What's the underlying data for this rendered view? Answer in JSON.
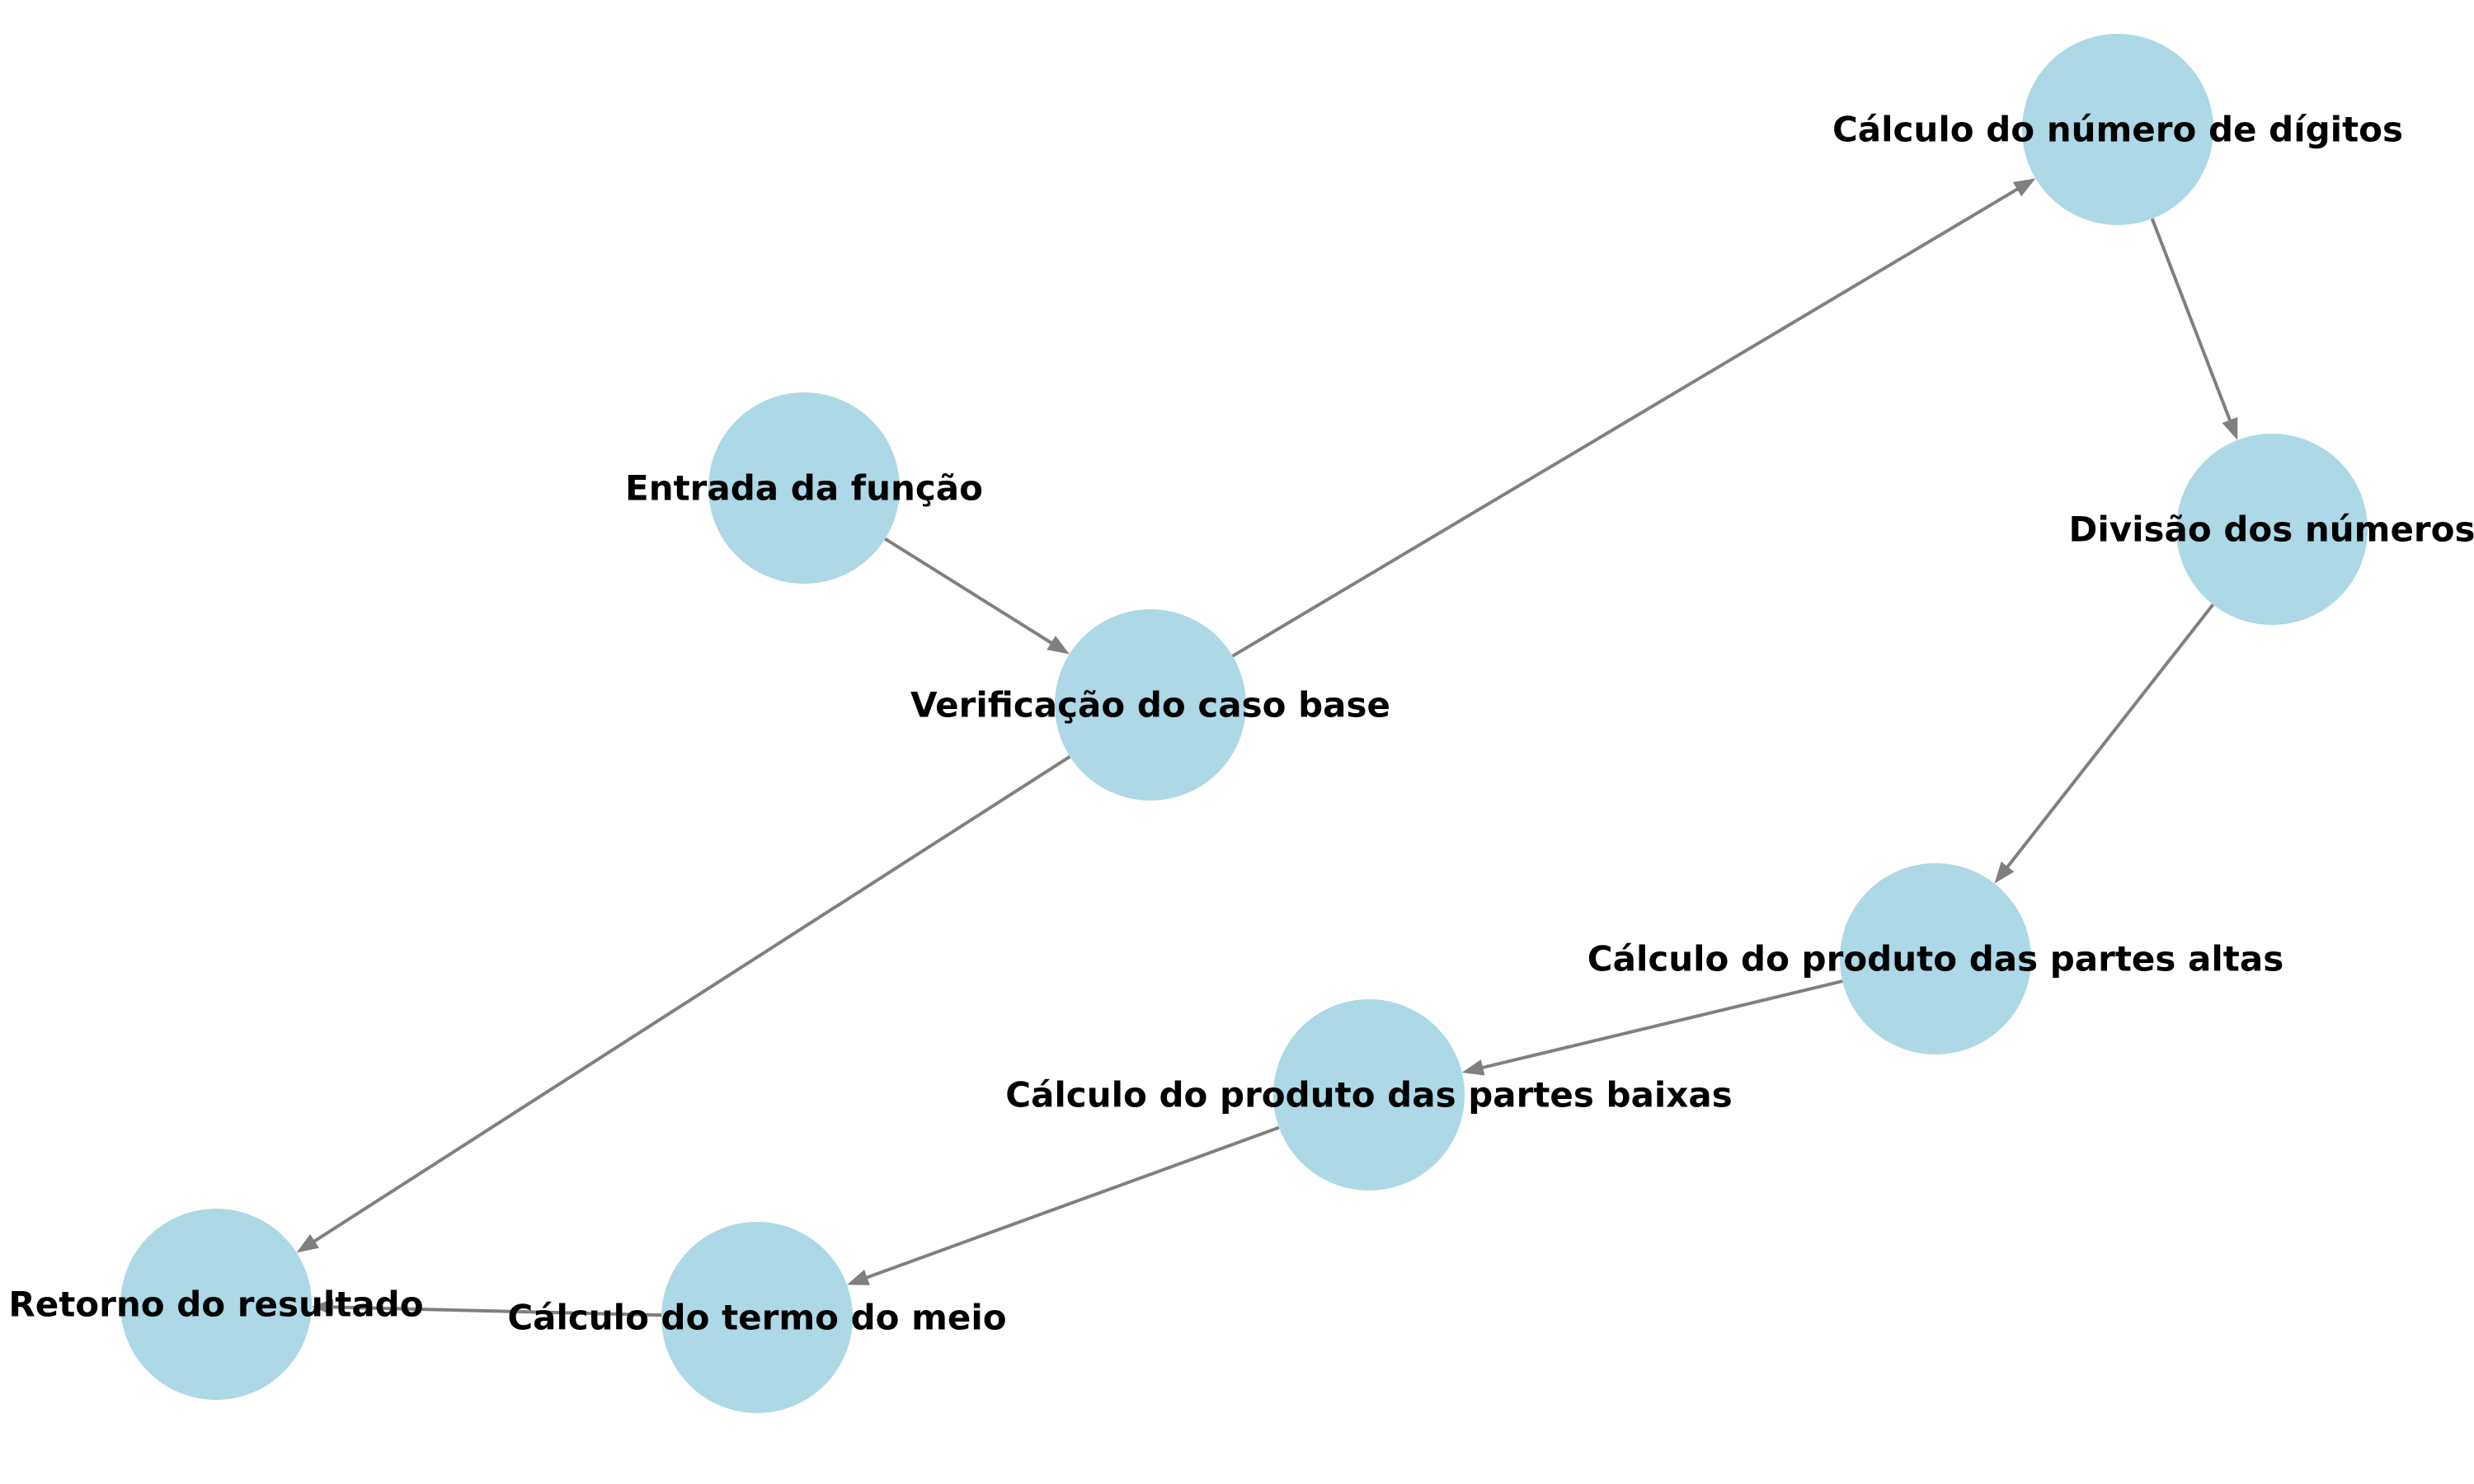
{
  "diagram": {
    "nodes": [
      {
        "id": "entrada",
        "label": "Entrada da função"
      },
      {
        "id": "verificacao",
        "label": "Verificação do caso base"
      },
      {
        "id": "digitos",
        "label": "Cálculo do número de dígitos"
      },
      {
        "id": "divisao",
        "label": "Divisão dos números"
      },
      {
        "id": "altas",
        "label": "Cálculo do produto das partes altas"
      },
      {
        "id": "baixas",
        "label": "Cálculo do produto das partes baixas"
      },
      {
        "id": "meio",
        "label": "Cálculo do termo do meio"
      },
      {
        "id": "retorno",
        "label": "Retorno do resultado"
      }
    ],
    "edges": [
      {
        "from": "entrada",
        "to": "verificacao"
      },
      {
        "from": "verificacao",
        "to": "digitos"
      },
      {
        "from": "verificacao",
        "to": "retorno"
      },
      {
        "from": "digitos",
        "to": "divisao"
      },
      {
        "from": "divisao",
        "to": "altas"
      },
      {
        "from": "altas",
        "to": "baixas"
      },
      {
        "from": "baixas",
        "to": "meio"
      },
      {
        "from": "meio",
        "to": "retorno"
      }
    ],
    "colors": {
      "node_fill": "#add8e6",
      "edge": "#808080",
      "label": "#000000"
    }
  }
}
